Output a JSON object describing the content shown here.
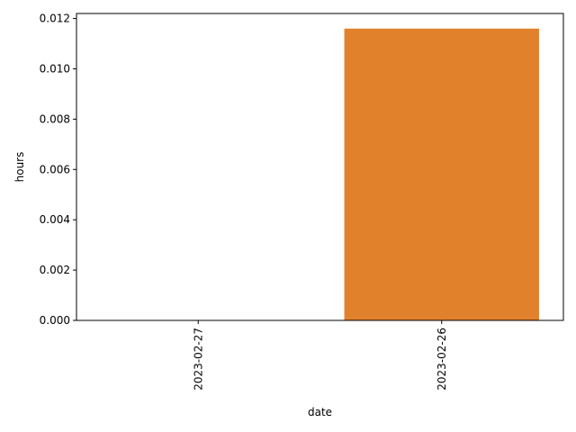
{
  "chart_data": {
    "type": "bar",
    "categories": [
      "2023-02-27",
      "2023-02-26"
    ],
    "values": [
      0.0,
      0.0116
    ],
    "bar_colors": [
      "#3a75af",
      "#e1812c"
    ],
    "xlabel": "date",
    "ylabel": "hours",
    "ylim": [
      0,
      0.0122
    ],
    "y_ticks": [
      0.0,
      0.002,
      0.004,
      0.006,
      0.008,
      0.01,
      0.012
    ],
    "y_tick_labels": [
      "0.000",
      "0.002",
      "0.004",
      "0.006",
      "0.008",
      "0.010",
      "0.012"
    ],
    "x_tick_rotation": "vertical",
    "grid": false,
    "legend": "none"
  }
}
